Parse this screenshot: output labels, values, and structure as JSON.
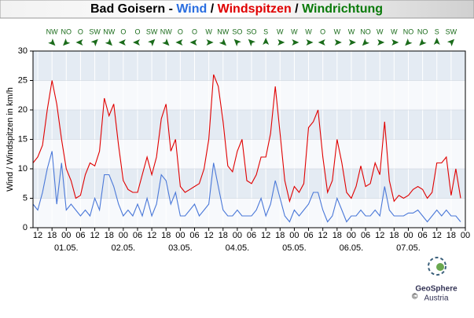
{
  "chart_data": {
    "type": "line",
    "title_parts": [
      {
        "text": "Bad Goisern - ",
        "color": "#000000"
      },
      {
        "text": "Wind",
        "color": "#2a6ee0"
      },
      {
        "text": " / ",
        "color": "#000000"
      },
      {
        "text": "Windspitzen",
        "color": "#e00000"
      },
      {
        "text": " / ",
        "color": "#000000"
      },
      {
        "text": "Windrichtung",
        "color": "#0a7a0a"
      }
    ],
    "ylabel": "Wind / Windspitzen in km/h",
    "x": [
      10,
      12,
      14,
      16,
      18,
      20,
      22,
      24,
      26,
      28,
      30,
      32,
      34,
      36,
      38,
      40,
      42,
      44,
      46,
      48,
      50,
      52,
      54,
      56,
      58,
      60,
      62,
      64,
      66,
      68,
      70,
      72,
      74,
      76,
      78,
      80,
      82,
      84,
      86,
      88,
      90,
      92,
      94,
      96,
      98,
      100,
      102,
      104,
      106,
      108,
      110,
      112,
      114,
      116,
      118,
      120,
      122,
      124,
      126,
      128,
      130,
      132,
      134,
      136,
      138,
      140,
      142,
      144,
      146,
      148,
      150,
      152,
      154,
      156,
      158,
      160,
      162,
      164,
      166,
      168,
      170,
      172,
      174,
      176,
      178,
      180,
      182,
      184,
      186,
      188,
      190
    ],
    "series": [
      {
        "name": "Windspitzen",
        "color": "#e00000",
        "values": [
          11,
          12,
          14,
          20,
          25,
          21,
          15,
          10,
          8,
          5,
          5.5,
          9,
          11,
          10.5,
          13,
          22,
          19,
          21,
          14,
          8,
          6.5,
          6,
          6,
          9,
          12,
          9,
          12,
          18.5,
          21,
          13,
          15,
          7,
          6,
          6.5,
          7,
          7.5,
          10,
          15,
          26,
          24,
          18,
          10.5,
          9.5,
          13,
          15,
          8,
          7.5,
          9,
          12,
          12,
          16,
          24,
          16,
          8,
          4.5,
          7,
          6,
          7.5,
          17,
          18,
          20,
          12,
          6,
          8,
          15,
          11,
          6,
          5,
          7,
          10.5,
          7,
          7.5,
          11,
          9,
          18,
          8,
          4.5,
          5.5,
          5,
          5.5,
          6.5,
          7,
          6.5,
          5,
          6,
          11,
          11,
          12,
          5.5,
          10,
          5
        ]
      },
      {
        "name": "Wind",
        "color": "#4a78d8",
        "values": [
          4,
          3,
          6,
          10,
          13,
          4,
          11,
          3,
          4,
          3,
          2,
          3,
          2,
          5,
          3,
          9,
          9,
          7,
          4,
          2,
          3,
          2,
          4,
          2,
          5,
          2,
          4,
          9,
          8,
          4,
          6,
          2,
          2,
          3,
          4,
          2,
          3,
          4,
          11,
          7,
          3,
          2,
          2,
          3,
          2,
          2,
          2,
          3,
          5,
          2,
          4,
          8,
          5,
          2,
          1,
          3,
          2,
          3,
          4,
          6,
          6,
          3,
          1,
          2,
          5,
          3,
          1,
          2,
          2,
          3,
          2,
          2,
          3,
          2,
          7,
          3,
          2,
          2,
          2,
          2.5,
          2.5,
          3,
          2,
          1,
          2,
          3,
          2,
          3,
          2,
          2,
          1
        ]
      }
    ],
    "xlim": [
      10,
      192
    ],
    "xticks": [
      {
        "value": 12,
        "label": "12"
      },
      {
        "value": 18,
        "label": "18"
      },
      {
        "value": 24,
        "label": "00"
      },
      {
        "value": 30,
        "label": "06"
      },
      {
        "value": 36,
        "label": "12"
      },
      {
        "value": 42,
        "label": "18"
      },
      {
        "value": 48,
        "label": "00"
      },
      {
        "value": 54,
        "label": "06"
      },
      {
        "value": 60,
        "label": "12"
      },
      {
        "value": 66,
        "label": "18"
      },
      {
        "value": 72,
        "label": "00"
      },
      {
        "value": 78,
        "label": "06"
      },
      {
        "value": 84,
        "label": "12"
      },
      {
        "value": 90,
        "label": "18"
      },
      {
        "value": 96,
        "label": "00"
      },
      {
        "value": 102,
        "label": "06"
      },
      {
        "value": 108,
        "label": "12"
      },
      {
        "value": 114,
        "label": "18"
      },
      {
        "value": 120,
        "label": "00"
      },
      {
        "value": 126,
        "label": "06"
      },
      {
        "value": 132,
        "label": "12"
      },
      {
        "value": 138,
        "label": "18"
      },
      {
        "value": 144,
        "label": "00"
      },
      {
        "value": 150,
        "label": "06"
      },
      {
        "value": 156,
        "label": "12"
      },
      {
        "value": 162,
        "label": "18"
      },
      {
        "value": 168,
        "label": "00"
      },
      {
        "value": 174,
        "label": "06"
      },
      {
        "value": 180,
        "label": "12"
      },
      {
        "value": 186,
        "label": "18"
      },
      {
        "value": 192,
        "label": "00"
      }
    ],
    "date_ticks": [
      {
        "value": 24,
        "label": "01.05."
      },
      {
        "value": 48,
        "label": "02.05."
      },
      {
        "value": 72,
        "label": "03.05."
      },
      {
        "value": 96,
        "label": "04.05."
      },
      {
        "value": 120,
        "label": "05.05."
      },
      {
        "value": 144,
        "label": "06.05."
      },
      {
        "value": 168,
        "label": "07.05."
      }
    ],
    "ylim": [
      0,
      30
    ],
    "yticks": [
      0,
      5,
      10,
      15,
      20,
      25,
      30
    ],
    "directions": {
      "color": "#1a6b1a",
      "x": [
        18,
        24,
        30,
        36,
        42,
        48,
        54,
        60,
        66,
        72,
        78,
        84,
        90,
        96,
        102,
        108,
        114,
        120,
        126,
        132,
        138,
        144,
        150,
        156,
        162,
        168,
        174,
        180,
        186
      ],
      "labels": [
        "NW",
        "NO",
        "O",
        "SW",
        "NW",
        "O",
        "O",
        "SW",
        "NW",
        "O",
        "O",
        "W",
        "NW",
        "SO",
        "SO",
        "S",
        "W",
        "W",
        "W",
        "O",
        "W",
        "W",
        "NO",
        "W",
        "W",
        "NO",
        "NO",
        "S",
        "SW"
      ]
    }
  },
  "logo": {
    "name": "GeoSphere",
    "sub": "Austria",
    "copyright": "©"
  }
}
